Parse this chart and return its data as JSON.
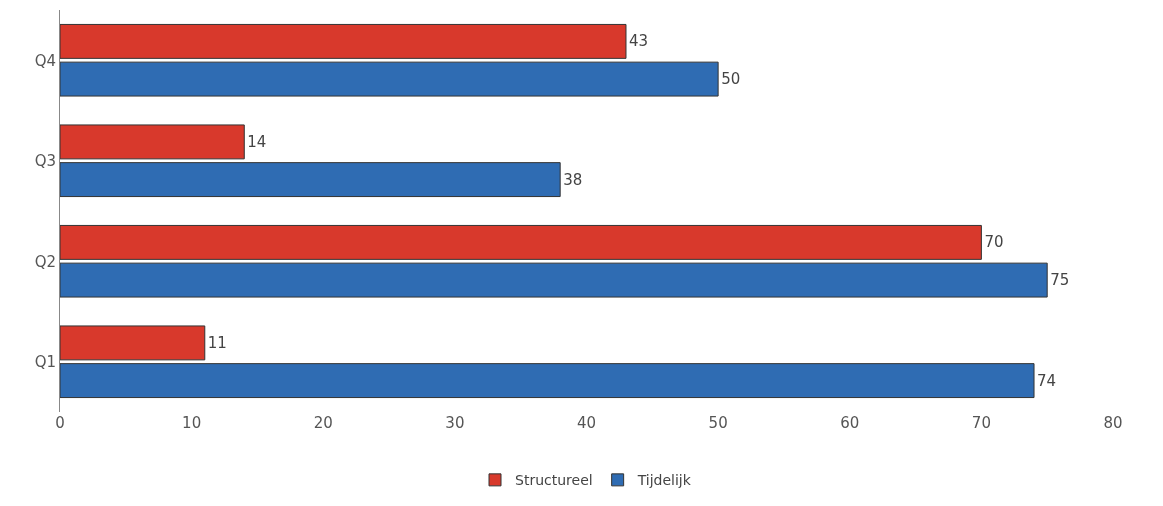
{
  "chart_data": {
    "type": "bar",
    "orientation": "horizontal",
    "categories": [
      "Q4",
      "Q3",
      "Q2",
      "Q1"
    ],
    "series": [
      {
        "name": "Structureel",
        "color": "#d8392c",
        "values": [
          43,
          14,
          70,
          11
        ]
      },
      {
        "name": "Tijdelijk",
        "color": "#2f6cb3",
        "values": [
          50,
          38,
          75,
          74
        ]
      }
    ],
    "xlim": [
      0,
      80
    ],
    "xticks": [
      0,
      10,
      20,
      30,
      40,
      50,
      60,
      70,
      80
    ],
    "data_labels": true,
    "legend": "bottom"
  }
}
